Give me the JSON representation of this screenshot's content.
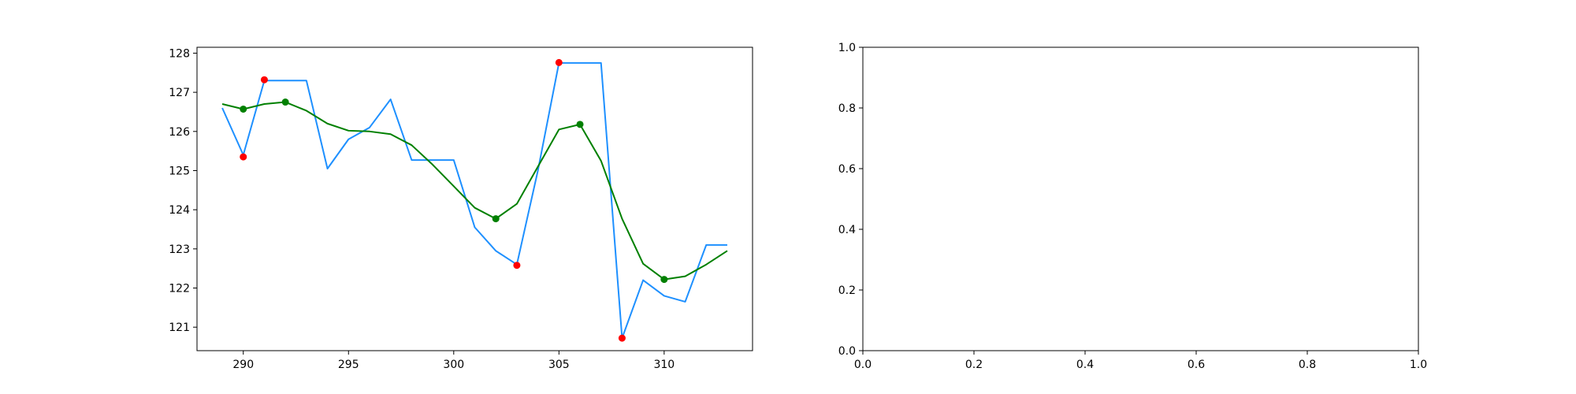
{
  "chart_data": [
    {
      "type": "line",
      "title": "",
      "xlabel": "",
      "ylabel": "",
      "xlim": [
        287.8,
        314.2
      ],
      "ylim": [
        120.4,
        128.15
      ],
      "xticks": [
        290,
        295,
        300,
        305,
        310
      ],
      "yticks": [
        121,
        122,
        123,
        124,
        125,
        126,
        127,
        128
      ],
      "grid": false,
      "series": [
        {
          "kind": "line",
          "color": "#1e90ff",
          "x": [
            289,
            290,
            291,
            292,
            293,
            294,
            295,
            296,
            297,
            298,
            299,
            300,
            301,
            302,
            303,
            304,
            305,
            306,
            307,
            308,
            309,
            310,
            311,
            312,
            313
          ],
          "y": [
            126.6,
            125.4,
            127.3,
            127.3,
            127.3,
            125.05,
            125.8,
            126.1,
            126.82,
            125.27,
            125.27,
            125.27,
            123.55,
            122.95,
            122.6,
            125.0,
            127.75,
            127.75,
            127.75,
            120.72,
            122.2,
            121.8,
            121.65,
            123.1,
            123.1
          ]
        },
        {
          "kind": "line",
          "color": "#008000",
          "x": [
            289,
            290,
            291,
            292,
            293,
            294,
            295,
            296,
            297,
            298,
            299,
            300,
            301,
            302,
            303,
            304,
            305,
            306,
            307,
            308,
            309,
            310,
            311,
            312,
            313
          ],
          "y": [
            126.7,
            126.57,
            126.7,
            126.75,
            126.53,
            126.2,
            126.02,
            126.0,
            125.93,
            125.65,
            125.15,
            124.6,
            124.05,
            123.77,
            124.15,
            125.1,
            126.05,
            126.18,
            125.25,
            123.77,
            122.62,
            122.22,
            122.3,
            122.6,
            122.95
          ]
        },
        {
          "kind": "scatter",
          "color": "#ff0000",
          "x": [
            290,
            291,
            303,
            305,
            308
          ],
          "y": [
            125.35,
            127.32,
            122.58,
            127.76,
            120.72
          ]
        },
        {
          "kind": "scatter",
          "color": "#008000",
          "x": [
            290,
            292,
            302,
            306,
            310
          ],
          "y": [
            126.57,
            126.75,
            123.77,
            126.18,
            122.22
          ]
        }
      ]
    },
    {
      "type": "line",
      "title": "",
      "xlabel": "",
      "ylabel": "",
      "xlim": [
        0.0,
        1.0
      ],
      "ylim": [
        0.0,
        1.0
      ],
      "xticks": [
        "0.0",
        "0.2",
        "0.4",
        "0.6",
        "0.8",
        "1.0"
      ],
      "yticks": [
        "0.0",
        "0.2",
        "0.4",
        "0.6",
        "0.8",
        "1.0"
      ],
      "grid": false,
      "series": []
    }
  ]
}
